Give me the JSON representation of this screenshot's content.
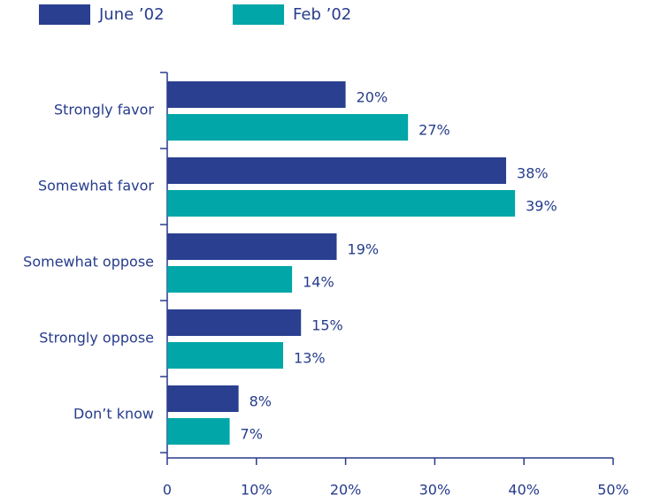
{
  "chart_data": {
    "type": "bar",
    "orientation": "horizontal",
    "categories": [
      "Strongly favor",
      "Somewhat favor",
      "Somewhat oppose",
      "Strongly oppose",
      "Don’t know"
    ],
    "series": [
      {
        "name": "June ’02",
        "color": "#2a3f8f",
        "values": [
          20,
          38,
          19,
          15,
          8
        ],
        "value_labels": [
          "20%",
          "38%",
          "19%",
          "15%",
          "8%"
        ]
      },
      {
        "name": "Feb ’02",
        "color": "#00a6a8",
        "values": [
          27,
          39,
          14,
          13,
          7
        ],
        "value_labels": [
          "27%",
          "39%",
          "14%",
          "13%",
          "7%"
        ]
      }
    ],
    "xlim": [
      0,
      50
    ],
    "xticks": [
      0,
      {
        "value": 10,
        "label": "10%"
      },
      {
        "value": 20,
        "label": "20%"
      },
      {
        "value": 30,
        "label": "30%"
      },
      {
        "value": 40,
        "label": "40%"
      },
      {
        "value": 50,
        "label": "50%"
      }
    ],
    "legend": "top-left"
  }
}
